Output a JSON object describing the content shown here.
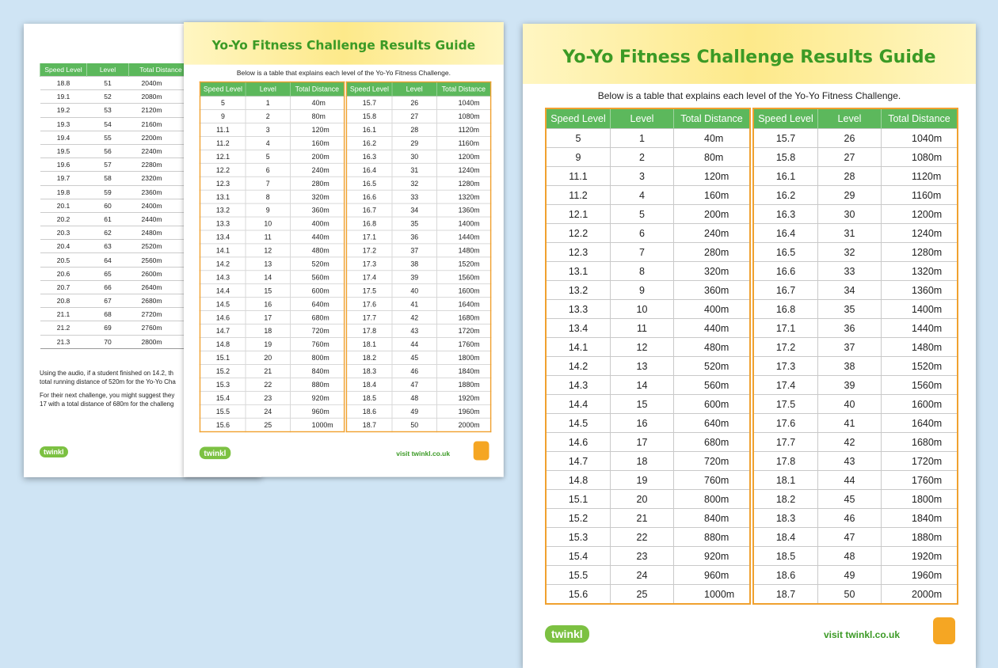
{
  "guide": {
    "title": "Yo-Yo Fitness Challenge Results Guide",
    "subtitle": "Below is a table that explains each level of the Yo-Yo Fitness Challenge.",
    "headers": [
      "Speed Level",
      "Level",
      "Total Distance"
    ],
    "left_rows": [
      [
        "5",
        "1",
        "40m"
      ],
      [
        "9",
        "2",
        "80m"
      ],
      [
        "11.1",
        "3",
        "120m"
      ],
      [
        "11.2",
        "4",
        "160m"
      ],
      [
        "12.1",
        "5",
        "200m"
      ],
      [
        "12.2",
        "6",
        "240m"
      ],
      [
        "12.3",
        "7",
        "280m"
      ],
      [
        "13.1",
        "8",
        "320m"
      ],
      [
        "13.2",
        "9",
        "360m"
      ],
      [
        "13.3",
        "10",
        "400m"
      ],
      [
        "13.4",
        "11",
        "440m"
      ],
      [
        "14.1",
        "12",
        "480m"
      ],
      [
        "14.2",
        "13",
        "520m"
      ],
      [
        "14.3",
        "14",
        "560m"
      ],
      [
        "14.4",
        "15",
        "600m"
      ],
      [
        "14.5",
        "16",
        "640m"
      ],
      [
        "14.6",
        "17",
        "680m"
      ],
      [
        "14.7",
        "18",
        "720m"
      ],
      [
        "14.8",
        "19",
        "760m"
      ],
      [
        "15.1",
        "20",
        "800m"
      ],
      [
        "15.2",
        "21",
        "840m"
      ],
      [
        "15.3",
        "22",
        "880m"
      ],
      [
        "15.4",
        "23",
        "920m"
      ],
      [
        "15.5",
        "24",
        "960m"
      ],
      [
        "15.6",
        "25",
        "1000m"
      ]
    ],
    "right_rows": [
      [
        "15.7",
        "26",
        "1040m"
      ],
      [
        "15.8",
        "27",
        "1080m"
      ],
      [
        "16.1",
        "28",
        "1120m"
      ],
      [
        "16.2",
        "29",
        "1160m"
      ],
      [
        "16.3",
        "30",
        "1200m"
      ],
      [
        "16.4",
        "31",
        "1240m"
      ],
      [
        "16.5",
        "32",
        "1280m"
      ],
      [
        "16.6",
        "33",
        "1320m"
      ],
      [
        "16.7",
        "34",
        "1360m"
      ],
      [
        "16.8",
        "35",
        "1400m"
      ],
      [
        "17.1",
        "36",
        "1440m"
      ],
      [
        "17.2",
        "37",
        "1480m"
      ],
      [
        "17.3",
        "38",
        "1520m"
      ],
      [
        "17.4",
        "39",
        "1560m"
      ],
      [
        "17.5",
        "40",
        "1600m"
      ],
      [
        "17.6",
        "41",
        "1640m"
      ],
      [
        "17.7",
        "42",
        "1680m"
      ],
      [
        "17.8",
        "43",
        "1720m"
      ],
      [
        "18.1",
        "44",
        "1760m"
      ],
      [
        "18.2",
        "45",
        "1800m"
      ],
      [
        "18.3",
        "46",
        "1840m"
      ],
      [
        "18.4",
        "47",
        "1880m"
      ],
      [
        "18.5",
        "48",
        "1920m"
      ],
      [
        "18.6",
        "49",
        "1960m"
      ],
      [
        "18.7",
        "50",
        "2000m"
      ]
    ],
    "footer": "visit twinkl.co.uk",
    "logo": "twinkl"
  },
  "back_page": {
    "rows": [
      [
        "18.8",
        "51",
        "2040m"
      ],
      [
        "19.1",
        "52",
        "2080m"
      ],
      [
        "19.2",
        "53",
        "2120m"
      ],
      [
        "19.3",
        "54",
        "2160m"
      ],
      [
        "19.4",
        "55",
        "2200m"
      ],
      [
        "19.5",
        "56",
        "2240m"
      ],
      [
        "19.6",
        "57",
        "2280m"
      ],
      [
        "19.7",
        "58",
        "2320m"
      ],
      [
        "19.8",
        "59",
        "2360m"
      ],
      [
        "20.1",
        "60",
        "2400m"
      ],
      [
        "20.2",
        "61",
        "2440m"
      ],
      [
        "20.3",
        "62",
        "2480m"
      ],
      [
        "20.4",
        "63",
        "2520m"
      ],
      [
        "20.5",
        "64",
        "2560m"
      ],
      [
        "20.6",
        "65",
        "2600m"
      ],
      [
        "20.7",
        "66",
        "2640m"
      ],
      [
        "20.8",
        "67",
        "2680m"
      ],
      [
        "21.1",
        "68",
        "2720m"
      ],
      [
        "21.2",
        "69",
        "2760m"
      ],
      [
        "21.3",
        "70",
        "2800m"
      ]
    ],
    "paragraphs": [
      [
        "Using the audio, if a student finished on 14.2, th",
        "total running distance of 520m for the Yo-Yo Cha"
      ],
      [
        "For their next challenge, you might suggest they",
        "17 with a total distance of 680m for the challeng"
      ]
    ]
  }
}
